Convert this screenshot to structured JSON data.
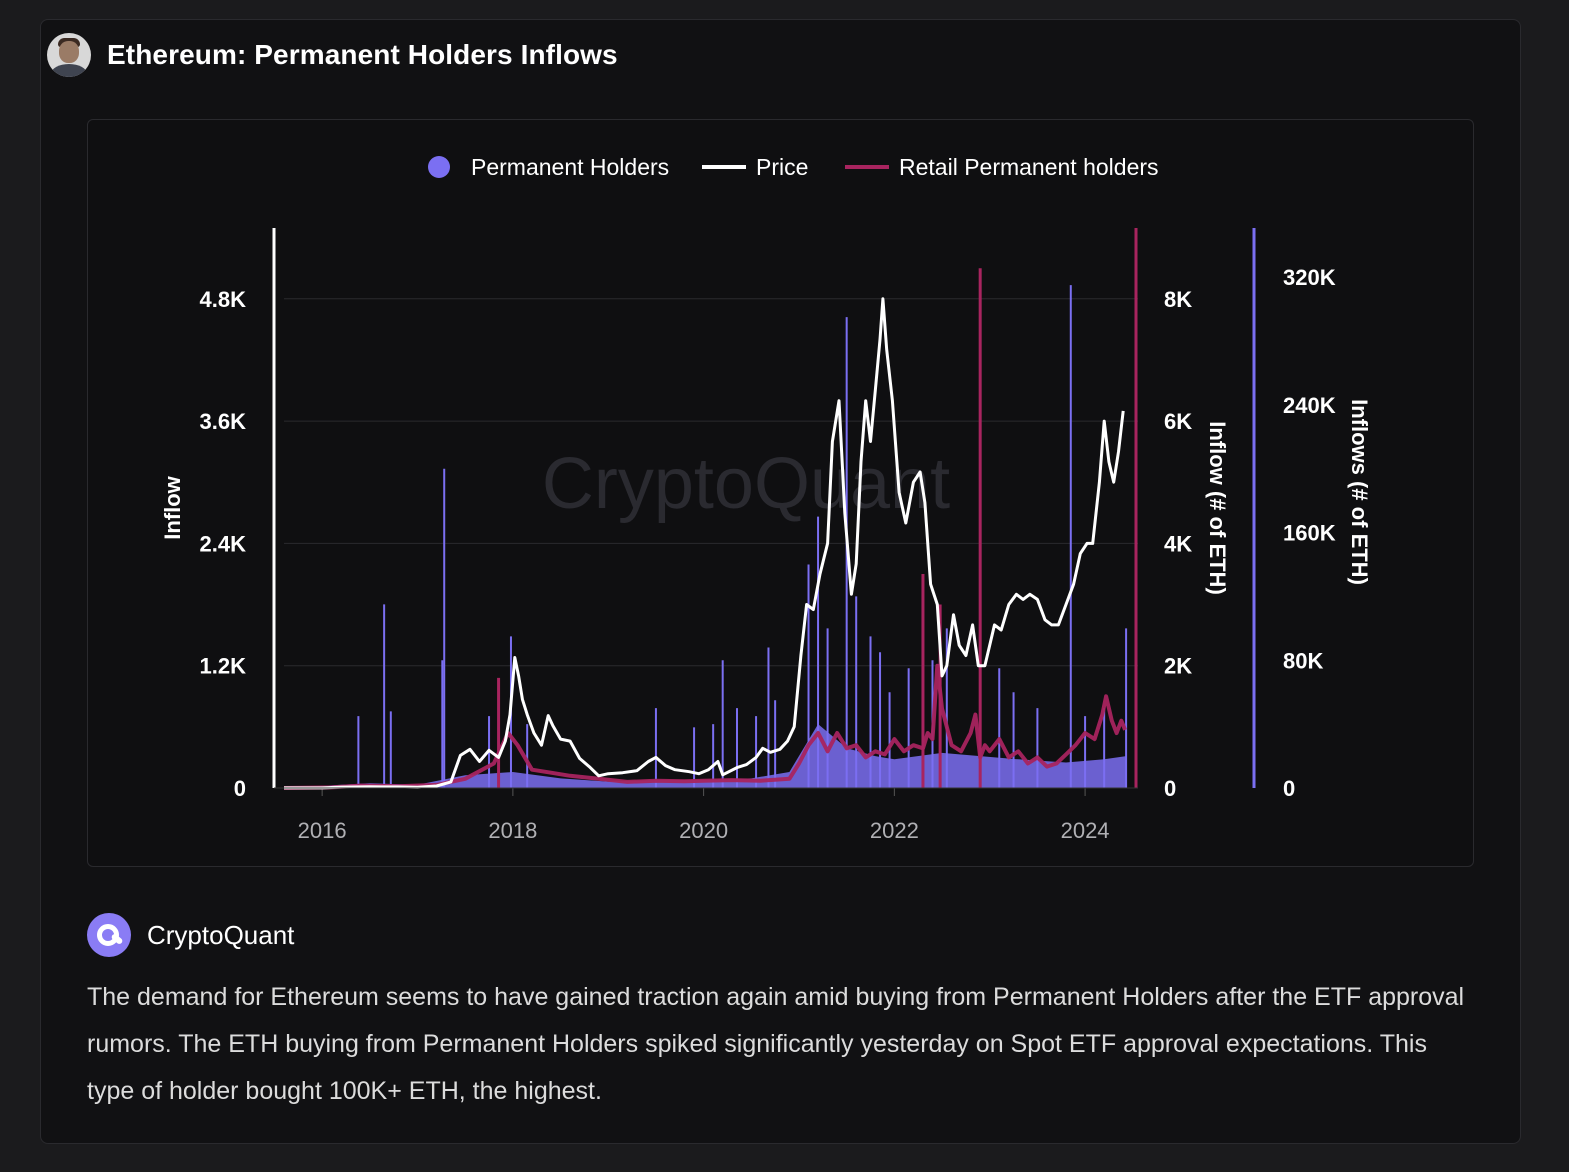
{
  "header": {
    "title": "Ethereum: Permanent Holders Inflows"
  },
  "chart_data": {
    "type": "line",
    "watermark": "CryptoQuant",
    "legend": {
      "placement": "top-center",
      "items": [
        {
          "name": "Permanent Holders",
          "marker": "dot",
          "color": "#7b6ff2"
        },
        {
          "name": "Price",
          "marker": "line",
          "color": "#ffffff"
        },
        {
          "name": "Retail Permanent holders",
          "marker": "line",
          "color": "#a8245f"
        }
      ]
    },
    "x_ticks": [
      "2016",
      "2018",
      "2020",
      "2022",
      "2024"
    ],
    "x_range": [
      2015.6,
      2024.45
    ],
    "axes": {
      "left": {
        "label": "Inflow",
        "ticks": [
          "0",
          "1.2K",
          "2.4K",
          "3.6K",
          "4.8K"
        ],
        "range": [
          0,
          5200
        ],
        "series": "Price"
      },
      "right_inner": {
        "label": "Inflow (# of ETH)",
        "ticks": [
          "0",
          "2K",
          "4K",
          "6K",
          "8K"
        ],
        "range": [
          0,
          8667
        ],
        "series": "Retail Permanent holders"
      },
      "right_outer": {
        "label": "Inflows (# of ETH)",
        "ticks": [
          "0",
          "80K",
          "160K",
          "240K",
          "320K"
        ],
        "range": [
          0,
          332000
        ],
        "series": "Permanent Holders"
      }
    },
    "series": [
      {
        "name": "Price",
        "color": "#ffffff",
        "axis": "left",
        "points": [
          [
            2015.6,
            1
          ],
          [
            2016.0,
            1
          ],
          [
            2016.2,
            9
          ],
          [
            2016.5,
            12
          ],
          [
            2016.8,
            11
          ],
          [
            2017.0,
            8
          ],
          [
            2017.2,
            20
          ],
          [
            2017.35,
            60
          ],
          [
            2017.45,
            320
          ],
          [
            2017.55,
            380
          ],
          [
            2017.65,
            260
          ],
          [
            2017.75,
            370
          ],
          [
            2017.85,
            300
          ],
          [
            2017.92,
            460
          ],
          [
            2017.97,
            720
          ],
          [
            2018.02,
            1280
          ],
          [
            2018.06,
            1100
          ],
          [
            2018.1,
            870
          ],
          [
            2018.15,
            720
          ],
          [
            2018.22,
            540
          ],
          [
            2018.3,
            420
          ],
          [
            2018.37,
            710
          ],
          [
            2018.42,
            610
          ],
          [
            2018.5,
            480
          ],
          [
            2018.6,
            460
          ],
          [
            2018.7,
            290
          ],
          [
            2018.8,
            210
          ],
          [
            2018.9,
            120
          ],
          [
            2019.0,
            140
          ],
          [
            2019.15,
            150
          ],
          [
            2019.3,
            170
          ],
          [
            2019.42,
            260
          ],
          [
            2019.5,
            300
          ],
          [
            2019.6,
            220
          ],
          [
            2019.7,
            180
          ],
          [
            2019.85,
            160
          ],
          [
            2019.95,
            140
          ],
          [
            2020.05,
            180
          ],
          [
            2020.15,
            260
          ],
          [
            2020.2,
            130
          ],
          [
            2020.35,
            200
          ],
          [
            2020.45,
            230
          ],
          [
            2020.55,
            300
          ],
          [
            2020.62,
            390
          ],
          [
            2020.7,
            350
          ],
          [
            2020.8,
            380
          ],
          [
            2020.88,
            460
          ],
          [
            2020.95,
            600
          ],
          [
            2021.02,
            1300
          ],
          [
            2021.08,
            1800
          ],
          [
            2021.15,
            1750
          ],
          [
            2021.22,
            2100
          ],
          [
            2021.3,
            2400
          ],
          [
            2021.35,
            3400
          ],
          [
            2021.42,
            3800
          ],
          [
            2021.48,
            2700
          ],
          [
            2021.55,
            1900
          ],
          [
            2021.6,
            2200
          ],
          [
            2021.65,
            3200
          ],
          [
            2021.7,
            3800
          ],
          [
            2021.75,
            3400
          ],
          [
            2021.8,
            3900
          ],
          [
            2021.85,
            4400
          ],
          [
            2021.88,
            4800
          ],
          [
            2021.92,
            4300
          ],
          [
            2021.98,
            3800
          ],
          [
            2022.05,
            2900
          ],
          [
            2022.12,
            2600
          ],
          [
            2022.2,
            3000
          ],
          [
            2022.27,
            3100
          ],
          [
            2022.32,
            2800
          ],
          [
            2022.38,
            2000
          ],
          [
            2022.45,
            1800
          ],
          [
            2022.5,
            1100
          ],
          [
            2022.55,
            1200
          ],
          [
            2022.62,
            1700
          ],
          [
            2022.68,
            1400
          ],
          [
            2022.75,
            1300
          ],
          [
            2022.82,
            1600
          ],
          [
            2022.88,
            1200
          ],
          [
            2022.95,
            1200
          ],
          [
            2023.05,
            1600
          ],
          [
            2023.12,
            1550
          ],
          [
            2023.2,
            1800
          ],
          [
            2023.28,
            1900
          ],
          [
            2023.35,
            1850
          ],
          [
            2023.42,
            1900
          ],
          [
            2023.5,
            1850
          ],
          [
            2023.58,
            1650
          ],
          [
            2023.65,
            1600
          ],
          [
            2023.72,
            1600
          ],
          [
            2023.8,
            1800
          ],
          [
            2023.88,
            2000
          ],
          [
            2023.95,
            2300
          ],
          [
            2024.02,
            2400
          ],
          [
            2024.08,
            2400
          ],
          [
            2024.15,
            3000
          ],
          [
            2024.2,
            3600
          ],
          [
            2024.25,
            3200
          ],
          [
            2024.3,
            3000
          ],
          [
            2024.35,
            3300
          ],
          [
            2024.4,
            3700
          ]
        ]
      },
      {
        "name": "Retail Permanent holders",
        "color": "#a8245f",
        "axis": "right_inner",
        "points": [
          [
            2015.6,
            0
          ],
          [
            2016.1,
            10
          ],
          [
            2016.4,
            40
          ],
          [
            2016.8,
            30
          ],
          [
            2017.2,
            50
          ],
          [
            2017.5,
            150
          ],
          [
            2017.8,
            400
          ],
          [
            2017.95,
            900
          ],
          [
            2018.05,
            700
          ],
          [
            2018.2,
            300
          ],
          [
            2018.4,
            250
          ],
          [
            2018.6,
            200
          ],
          [
            2018.9,
            150
          ],
          [
            2019.2,
            100
          ],
          [
            2019.5,
            120
          ],
          [
            2019.8,
            110
          ],
          [
            2020.0,
            120
          ],
          [
            2020.3,
            130
          ],
          [
            2020.6,
            120
          ],
          [
            2020.9,
            150
          ],
          [
            2021.0,
            400
          ],
          [
            2021.1,
            700
          ],
          [
            2021.2,
            900
          ],
          [
            2021.3,
            600
          ],
          [
            2021.4,
            900
          ],
          [
            2021.5,
            650
          ],
          [
            2021.6,
            700
          ],
          [
            2021.7,
            500
          ],
          [
            2021.8,
            600
          ],
          [
            2021.9,
            550
          ],
          [
            2022.0,
            800
          ],
          [
            2022.1,
            600
          ],
          [
            2022.2,
            700
          ],
          [
            2022.3,
            650
          ],
          [
            2022.35,
            900
          ],
          [
            2022.4,
            800
          ],
          [
            2022.45,
            2000
          ],
          [
            2022.5,
            1300
          ],
          [
            2022.6,
            700
          ],
          [
            2022.7,
            600
          ],
          [
            2022.8,
            900
          ],
          [
            2022.85,
            1200
          ],
          [
            2022.9,
            500
          ],
          [
            2022.95,
            700
          ],
          [
            2023.0,
            600
          ],
          [
            2023.1,
            800
          ],
          [
            2023.2,
            500
          ],
          [
            2023.3,
            600
          ],
          [
            2023.4,
            400
          ],
          [
            2023.5,
            500
          ],
          [
            2023.6,
            350
          ],
          [
            2023.7,
            400
          ],
          [
            2023.8,
            550
          ],
          [
            2023.9,
            700
          ],
          [
            2024.0,
            900
          ],
          [
            2024.1,
            800
          ],
          [
            2024.18,
            1200
          ],
          [
            2024.22,
            1500
          ],
          [
            2024.28,
            1100
          ],
          [
            2024.33,
            900
          ],
          [
            2024.38,
            1100
          ],
          [
            2024.42,
            950
          ]
        ]
      },
      {
        "name": "Permanent Holders",
        "color": "#7b6ff2",
        "axis": "right_outer",
        "points": [
          [
            2015.6,
            0
          ],
          [
            2016.2,
            2000
          ],
          [
            2016.5,
            3000
          ],
          [
            2017.0,
            2000
          ],
          [
            2017.5,
            8000
          ],
          [
            2018.0,
            10000
          ],
          [
            2018.5,
            6000
          ],
          [
            2019.0,
            4000
          ],
          [
            2019.5,
            5000
          ],
          [
            2020.0,
            5000
          ],
          [
            2020.5,
            6000
          ],
          [
            2020.9,
            10000
          ],
          [
            2021.2,
            40000
          ],
          [
            2021.5,
            25000
          ],
          [
            2021.8,
            20000
          ],
          [
            2022.0,
            18000
          ],
          [
            2022.5,
            22000
          ],
          [
            2022.9,
            20000
          ],
          [
            2023.3,
            18000
          ],
          [
            2023.8,
            16000
          ],
          [
            2024.2,
            18000
          ],
          [
            2024.43,
            20000
          ]
        ]
      }
    ],
    "spikes": {
      "Permanent Holders": [
        [
          2016.38,
          45000
        ],
        [
          2016.65,
          115000
        ],
        [
          2016.72,
          48000
        ],
        [
          2017.26,
          80000
        ],
        [
          2017.28,
          200000
        ],
        [
          2017.75,
          45000
        ],
        [
          2017.98,
          95000
        ],
        [
          2018.15,
          40000
        ],
        [
          2019.5,
          50000
        ],
        [
          2019.9,
          38000
        ],
        [
          2020.1,
          40000
        ],
        [
          2020.2,
          80000
        ],
        [
          2020.35,
          50000
        ],
        [
          2020.55,
          45000
        ],
        [
          2020.68,
          88000
        ],
        [
          2020.75,
          55000
        ],
        [
          2021.1,
          140000
        ],
        [
          2021.2,
          170000
        ],
        [
          2021.3,
          100000
        ],
        [
          2021.5,
          295000
        ],
        [
          2021.6,
          120000
        ],
        [
          2021.75,
          95000
        ],
        [
          2021.85,
          85000
        ],
        [
          2021.95,
          60000
        ],
        [
          2022.15,
          75000
        ],
        [
          2022.4,
          80000
        ],
        [
          2022.55,
          100000
        ],
        [
          2022.9,
          110000
        ],
        [
          2023.1,
          75000
        ],
        [
          2023.25,
          60000
        ],
        [
          2023.5,
          50000
        ],
        [
          2023.85,
          315000
        ],
        [
          2024.0,
          45000
        ],
        [
          2024.2,
          50000
        ],
        [
          2024.43,
          100000
        ]
      ],
      "Retail Permanent holders": [
        [
          2017.85,
          1800
        ],
        [
          2022.9,
          8500
        ],
        [
          2022.3,
          3500
        ],
        [
          2022.48,
          3000
        ]
      ]
    }
  },
  "source": {
    "name": "CryptoQuant"
  },
  "description": "The demand for Ethereum seems to have gained traction again amid buying from Permanent Holders after the ETF approval rumors. The ETH buying from Permanent Holders spiked significantly yesterday on Spot ETF approval expectations. This type of holder bought 100K+ ETH, the highest."
}
